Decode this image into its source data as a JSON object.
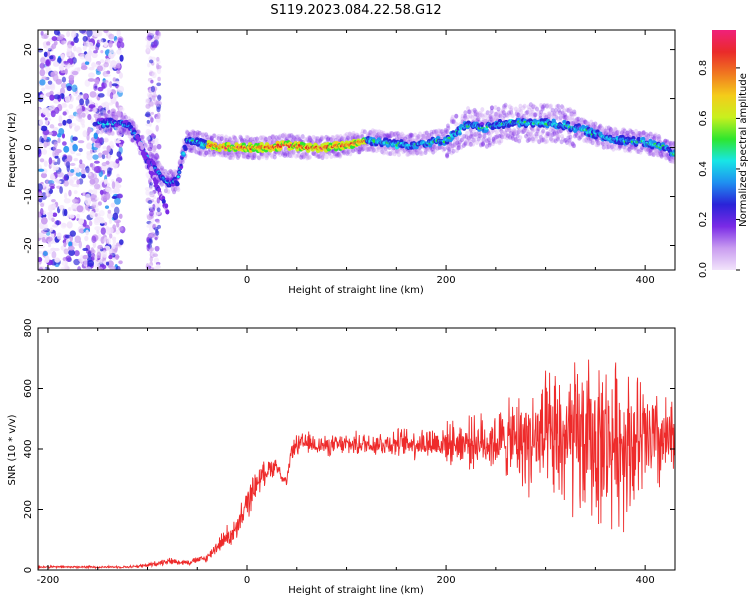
{
  "figure_title": "S119.2023.084.22.58.G12",
  "colors": {
    "snr_line": "#ee2b2b",
    "scale": [
      "#f2e4fb",
      "#c99cf0",
      "#7a2ae6",
      "#2a23d8",
      "#1f8ff0",
      "#18e6e6",
      "#2ee62e",
      "#c8f01e",
      "#f4cc1a",
      "#f07820",
      "#ea2a2a",
      "#f0207a"
    ]
  },
  "chart_data": [
    {
      "type": "heatmap",
      "title": "",
      "xlabel": "Height of straight line (km)",
      "ylabel": "Frequency (Hz)",
      "xlim": [
        -210,
        430
      ],
      "ylim": [
        -25,
        24
      ],
      "xticks": [
        -200,
        0,
        200,
        400
      ],
      "yticks": [
        -20,
        -10,
        0,
        10,
        20
      ],
      "colorbar": {
        "label": "Normalized spectral amplitude",
        "range": [
          0,
          0.95
        ],
        "ticks": [
          "0.0",
          "0.2",
          "0.4",
          "0.6",
          "0.8"
        ]
      },
      "ridge": {
        "x": [
          -150,
          -130,
          -120,
          -110,
          -100,
          -90,
          -80,
          -70,
          -65,
          -60,
          -40,
          -20,
          0,
          20,
          40,
          60,
          80,
          100,
          120,
          140,
          160,
          180,
          200,
          220,
          240,
          260,
          280,
          300,
          320,
          340,
          360,
          380,
          400,
          420,
          430
        ],
        "y": [
          5,
          5,
          4.5,
          2,
          -2,
          -5,
          -7,
          -7,
          -2,
          1.5,
          0.5,
          0,
          0,
          0,
          0.5,
          0,
          0,
          0.5,
          1.5,
          1,
          0.5,
          1,
          1.5,
          4.5,
          4,
          5,
          5,
          5,
          4.5,
          3.5,
          2,
          1.5,
          1,
          0,
          -1.5
        ]
      },
      "branch": {
        "x": [
          -110,
          -100,
          -90,
          -80
        ],
        "y": [
          2,
          -3,
          -8,
          -13
        ]
      },
      "noise_region_x": [
        -210,
        -125
      ]
    },
    {
      "type": "line",
      "title": "",
      "xlabel": "Height of straight line (km)",
      "ylabel": "SNR (10 * v/v)",
      "xlim": [
        -210,
        430
      ],
      "ylim": [
        0,
        800
      ],
      "xticks": [
        -200,
        0,
        200,
        400
      ],
      "yticks": [
        0,
        200,
        400,
        600,
        800
      ],
      "series": [
        {
          "x": [
            -210,
            -120,
            -100,
            -80,
            -60,
            -40,
            -30,
            -20,
            -10,
            0,
            10,
            20,
            30,
            35,
            40,
            45,
            50,
            60,
            80,
            100,
            150,
            200,
            250,
            280,
            300,
            320,
            350,
            380,
            400,
            420,
            430
          ],
          "y": [
            10,
            10,
            15,
            30,
            25,
            40,
            80,
            110,
            130,
            220,
            290,
            330,
            350,
            300,
            290,
            400,
            410,
            420,
            410,
            415,
            420,
            420,
            425,
            430,
            425,
            425,
            420,
            425,
            420,
            420,
            420
          ],
          "spread": [
            4,
            4,
            8,
            12,
            10,
            15,
            25,
            40,
            50,
            60,
            50,
            40,
            35,
            15,
            15,
            30,
            40,
            40,
            35,
            40,
            50,
            70,
            110,
            180,
            230,
            280,
            300,
            280,
            230,
            170,
            150
          ]
        }
      ]
    }
  ]
}
